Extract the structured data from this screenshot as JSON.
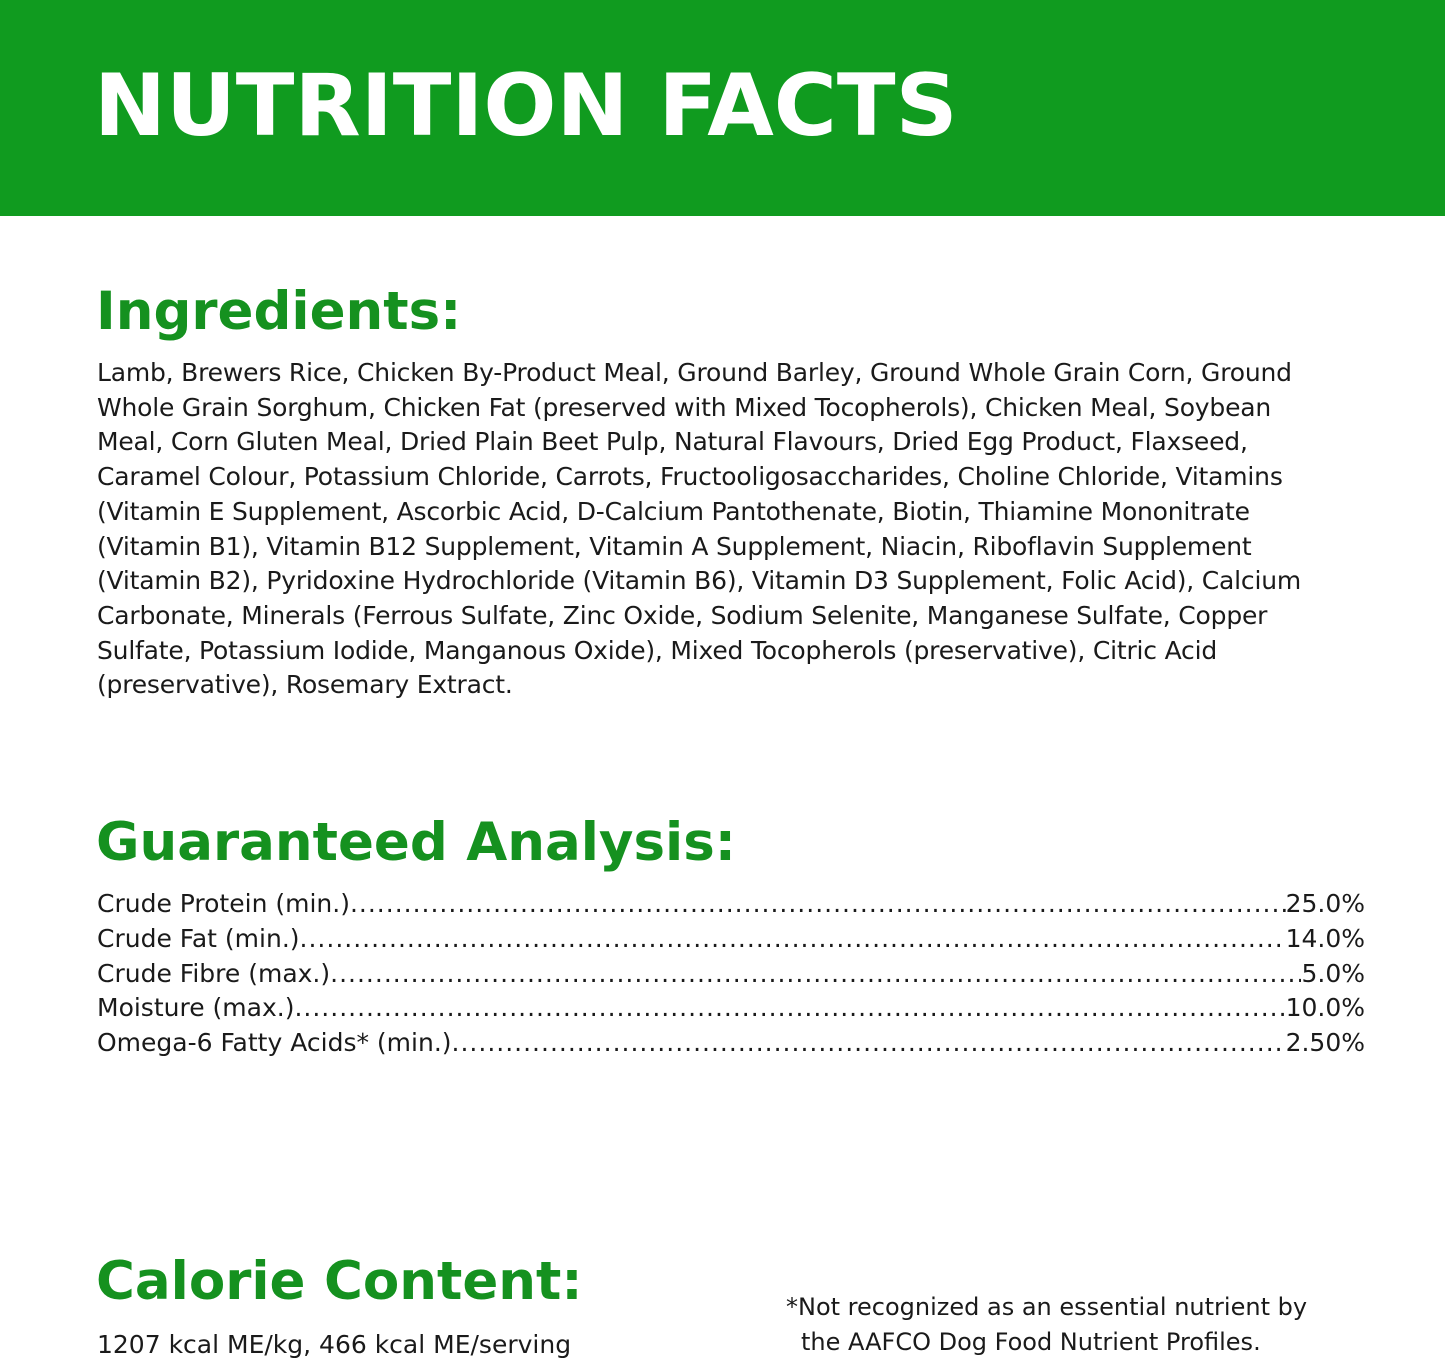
{
  "banner": {
    "title": "NUTRITION FACTS",
    "background_color": "#109b1f"
  },
  "ingredients": {
    "heading": "Ingredients:",
    "text": "Lamb, Brewers Rice, Chicken By-Product Meal, Ground Barley, Ground Whole Grain Corn, Ground Whole Grain Sorghum, Chicken Fat (preserved with Mixed Tocopherols), Chicken Meal, Soybean Meal, Corn Gluten Meal, Dried Plain Beet Pulp, Natural Flavours, Dried Egg Product, Flaxseed, Caramel Colour, Potassium Chloride, Carrots, Fructooligosaccharides, Choline Chloride, Vitamins (Vitamin E Supplement, Ascorbic Acid, D-Calcium Pantothenate, Biotin, Thiamine Mononitrate (Vitamin B1), Vitamin B12 Supplement, Vitamin A Supplement, Niacin, Riboflavin Supplement (Vitamin B2), Pyridoxine Hydrochloride (Vitamin B6), Vitamin D3 Supplement, Folic Acid), Calcium Carbonate, Minerals (Ferrous Sulfate, Zinc Oxide, Sodium Selenite, Manganese Sulfate, Copper Sulfate, Potassium Iodide, Manganous Oxide), Mixed Tocopherols (preservative), Citric Acid (preservative), Rosemary Extract."
  },
  "analysis": {
    "heading": "Guaranteed Analysis:",
    "rows": [
      {
        "label": "Crude Protein (min.)",
        "value": "25.0%"
      },
      {
        "label": "Crude Fat (min.)",
        "value": "14.0%"
      },
      {
        "label": "Crude Fibre (max.)",
        "value": "5.0%"
      },
      {
        "label": "Moisture (max.)",
        "value": "10.0%"
      },
      {
        "label": "Omega-6 Fatty Acids* (min.)",
        "value": "2.50%"
      }
    ]
  },
  "calorie": {
    "heading": "Calorie Content:",
    "text": "1207 kcal ME/kg, 466 kcal ME/serving"
  },
  "footnote": {
    "line1": "*Not recognized as an essential nutrient by",
    "line2": "the AAFCO Dog Food Nutrient Profiles."
  },
  "colors": {
    "heading_green": "#15911f",
    "body_text": "#1a1a1a",
    "banner_text": "#ffffff"
  }
}
